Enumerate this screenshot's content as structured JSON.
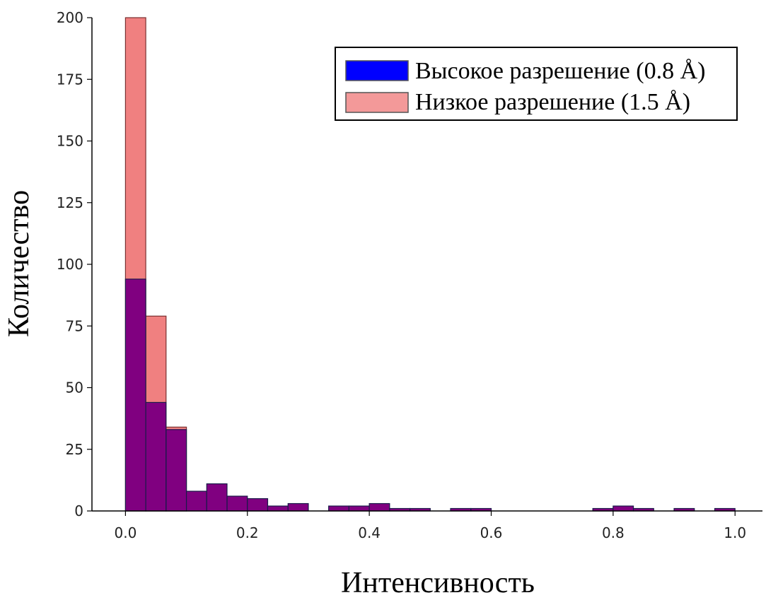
{
  "chart_data": {
    "type": "bar",
    "xlabel": "Интенсивность",
    "ylabel": "Количество",
    "xlim": [
      -0.055,
      1.045
    ],
    "ylim": [
      0,
      200
    ],
    "bin_width": 0.0333,
    "x_ticks": [
      {
        "value": 0.0,
        "label": "0.0"
      },
      {
        "value": 0.2,
        "label": "0.2"
      },
      {
        "value": 0.4,
        "label": "0.4"
      },
      {
        "value": 0.6,
        "label": "0.6"
      },
      {
        "value": 0.8,
        "label": "0.8"
      },
      {
        "value": 1.0,
        "label": "1.0"
      }
    ],
    "y_ticks": [
      {
        "value": 0,
        "label": "0"
      },
      {
        "value": 25,
        "label": "25"
      },
      {
        "value": 50,
        "label": "50"
      },
      {
        "value": 75,
        "label": "75"
      },
      {
        "value": 100,
        "label": "100"
      },
      {
        "value": 125,
        "label": "125"
      },
      {
        "value": 150,
        "label": "150"
      },
      {
        "value": 175,
        "label": "175"
      },
      {
        "value": 200,
        "label": "200"
      }
    ],
    "legend_position": "top-right",
    "series": [
      {
        "name": "Низкое разрешение (1.5 Å)",
        "color": "#f08080",
        "edge_color": "#7a3030",
        "bins": [
          {
            "x": 0.0,
            "value": 200
          },
          {
            "x": 0.0333,
            "value": 79
          },
          {
            "x": 0.0667,
            "value": 34
          }
        ]
      },
      {
        "name": "Высокое разрешение (0.8 Å)",
        "color": "#0000ff",
        "edge_color": "#1a1a4a",
        "bins": [
          {
            "x": 0.0,
            "value": 94
          },
          {
            "x": 0.0333,
            "value": 44
          },
          {
            "x": 0.0667,
            "value": 33
          },
          {
            "x": 0.1,
            "value": 8
          },
          {
            "x": 0.1333,
            "value": 11
          },
          {
            "x": 0.1667,
            "value": 6
          },
          {
            "x": 0.2,
            "value": 5
          },
          {
            "x": 0.2333,
            "value": 2
          },
          {
            "x": 0.2667,
            "value": 3
          },
          {
            "x": 0.3333,
            "value": 2
          },
          {
            "x": 0.3667,
            "value": 2
          },
          {
            "x": 0.4,
            "value": 3
          },
          {
            "x": 0.4333,
            "value": 1
          },
          {
            "x": 0.4667,
            "value": 1
          },
          {
            "x": 0.5333,
            "value": 1
          },
          {
            "x": 0.5667,
            "value": 1
          },
          {
            "x": 0.7667,
            "value": 1
          },
          {
            "x": 0.8,
            "value": 2
          },
          {
            "x": 0.8333,
            "value": 1
          },
          {
            "x": 0.9,
            "value": 1
          },
          {
            "x": 0.9667,
            "value": 1
          }
        ]
      }
    ],
    "overlap_color": "#800080"
  }
}
